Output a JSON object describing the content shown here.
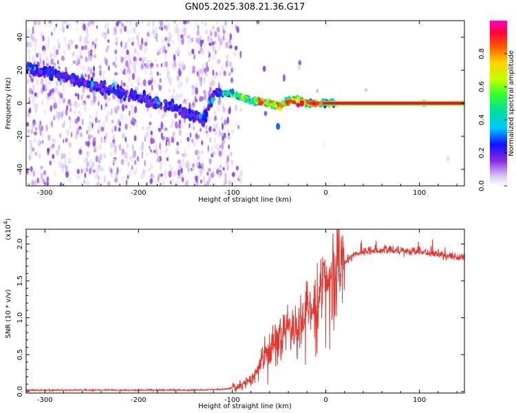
{
  "title": "GN05.2025.308.21.36.G17",
  "chart_data": [
    {
      "type": "heatmap",
      "name": "spectrogram",
      "xlabel": "Height of straight line (km)",
      "ylabel": "Frequency (Hz)",
      "xlim": [
        -320,
        148
      ],
      "ylim": [
        -50,
        50
      ],
      "xticks": [
        -300,
        -200,
        -100,
        0,
        100
      ],
      "yticks": [
        -40,
        -20,
        0,
        20,
        40
      ],
      "colorbar": {
        "label": "Normalized spectral amplitude",
        "range": [
          0,
          1
        ],
        "ticks": [
          "0.0",
          "0.2",
          "0.4",
          "0.6",
          "0.8"
        ],
        "tick_values": [
          0,
          0.2,
          0.4,
          0.6,
          0.8
        ]
      },
      "ridge": [
        {
          "x": -320,
          "y": 22
        },
        {
          "x": -280,
          "y": 16
        },
        {
          "x": -240,
          "y": 10
        },
        {
          "x": -200,
          "y": 3
        },
        {
          "x": -160,
          "y": -3
        },
        {
          "x": -130,
          "y": -10
        },
        {
          "x": -120,
          "y": 6
        },
        {
          "x": -100,
          "y": 6
        },
        {
          "x": -80,
          "y": 2
        },
        {
          "x": -60,
          "y": 0
        },
        {
          "x": -50,
          "y": -2
        },
        {
          "x": -40,
          "y": 2
        },
        {
          "x": -30,
          "y": 2
        },
        {
          "x": -20,
          "y": 0
        },
        {
          "x": 0,
          "y": 0
        },
        {
          "x": 148,
          "y": 0
        }
      ],
      "isolated_features": [
        {
          "x": -51,
          "y": -14,
          "level": 0.3
        },
        {
          "x": 105,
          "y": 0,
          "level": 0.5
        }
      ],
      "strong_band": {
        "x_start": -18,
        "x_end": 148,
        "y": 0,
        "level": 0.92
      }
    },
    {
      "type": "line",
      "name": "snr",
      "xlabel": "Height of straight line (km)",
      "ylabel": "SNR (10 * v/v)",
      "yscale_label": "(x10",
      "yscale_exponent": "4",
      "xlim": [
        -320,
        148
      ],
      "ylim": [
        -0.02,
        2.2
      ],
      "xticks": [
        -300,
        -200,
        -100,
        0,
        100
      ],
      "yticks": [
        "0.0",
        "0.5",
        "1.0",
        "1.5",
        "2.0"
      ],
      "ytick_values": [
        0,
        0.5,
        1.0,
        1.5,
        2.0
      ],
      "color": "#e8342c",
      "envelope": [
        {
          "x": -320,
          "y": 0.02
        },
        {
          "x": -250,
          "y": 0.02
        },
        {
          "x": -150,
          "y": 0.02
        },
        {
          "x": -110,
          "y": 0.03
        },
        {
          "x": -95,
          "y": 0.06
        },
        {
          "x": -80,
          "y": 0.15
        },
        {
          "x": -70,
          "y": 0.4
        },
        {
          "x": -60,
          "y": 0.6
        },
        {
          "x": -50,
          "y": 0.75
        },
        {
          "x": -40,
          "y": 0.85
        },
        {
          "x": -30,
          "y": 0.95
        },
        {
          "x": -20,
          "y": 1.1
        },
        {
          "x": -10,
          "y": 1.3
        },
        {
          "x": 0,
          "y": 1.45
        },
        {
          "x": 10,
          "y": 1.6
        },
        {
          "x": 20,
          "y": 1.75
        },
        {
          "x": 30,
          "y": 1.85
        },
        {
          "x": 40,
          "y": 1.9
        },
        {
          "x": 60,
          "y": 1.92
        },
        {
          "x": 80,
          "y": 1.91
        },
        {
          "x": 100,
          "y": 1.9
        },
        {
          "x": 120,
          "y": 1.86
        },
        {
          "x": 148,
          "y": 1.8
        }
      ]
    }
  ]
}
